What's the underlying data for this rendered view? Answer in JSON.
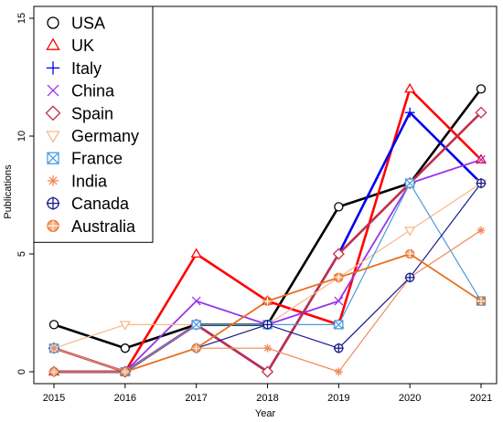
{
  "chart_data": {
    "type": "line",
    "title": "",
    "xlabel": "Year",
    "ylabel": "Publications",
    "x": [
      2015,
      2016,
      2017,
      2018,
      2019,
      2020,
      2021
    ],
    "x_tick_labels": [
      "2015",
      "2016",
      "2017",
      "2018",
      "2019",
      "2020",
      "2021"
    ],
    "ylim": [
      0,
      15
    ],
    "y_ticks": [
      0,
      5,
      10,
      15
    ],
    "y_tick_labels": [
      "0",
      "5",
      "10",
      "15"
    ],
    "grid": false,
    "legend_position": "top-left",
    "series": [
      {
        "name": "USA",
        "values": [
          2,
          1,
          2,
          2,
          7,
          8,
          12
        ],
        "color": "#000000",
        "marker": "circle",
        "line": "thick"
      },
      {
        "name": "UK",
        "values": [
          0,
          0,
          5,
          3,
          2,
          12,
          9
        ],
        "color": "#ff0000",
        "marker": "triangle-up",
        "line": "thick"
      },
      {
        "name": "Italy",
        "values": [
          0,
          0,
          2,
          0,
          5,
          11,
          8
        ],
        "color": "#0000ee",
        "marker": "plus",
        "line": "thick"
      },
      {
        "name": "China",
        "values": [
          1,
          0,
          3,
          2,
          3,
          8,
          9
        ],
        "color": "#9933ee",
        "marker": "x",
        "line": "medium"
      },
      {
        "name": "Spain",
        "values": [
          1,
          0,
          2,
          0,
          5,
          8,
          11
        ],
        "color": "#c0304a",
        "marker": "diamond",
        "line": "thick"
      },
      {
        "name": "Germany",
        "values": [
          1,
          2,
          2,
          2,
          4,
          6,
          8
        ],
        "color": "#f6b98c",
        "marker": "triangle-down",
        "line": "thin"
      },
      {
        "name": "France",
        "values": [
          1,
          0,
          2,
          2,
          2,
          8,
          3
        ],
        "color": "#4a9be0",
        "marker": "square-x",
        "line": "thin"
      },
      {
        "name": "India",
        "values": [
          1,
          0,
          1,
          1,
          0,
          4,
          6
        ],
        "color": "#f08a5a",
        "marker": "asterisk",
        "line": "thin"
      },
      {
        "name": "Canada",
        "values": [
          0,
          0,
          1,
          2,
          1,
          4,
          8
        ],
        "color": "#1a1a8c",
        "marker": "circle-plus",
        "line": "thin"
      },
      {
        "name": "Australia",
        "values": [
          0,
          0,
          1,
          3,
          4,
          5,
          3
        ],
        "color": "#e87020",
        "marker": "circle-cross-fill",
        "line": "medium"
      }
    ]
  }
}
